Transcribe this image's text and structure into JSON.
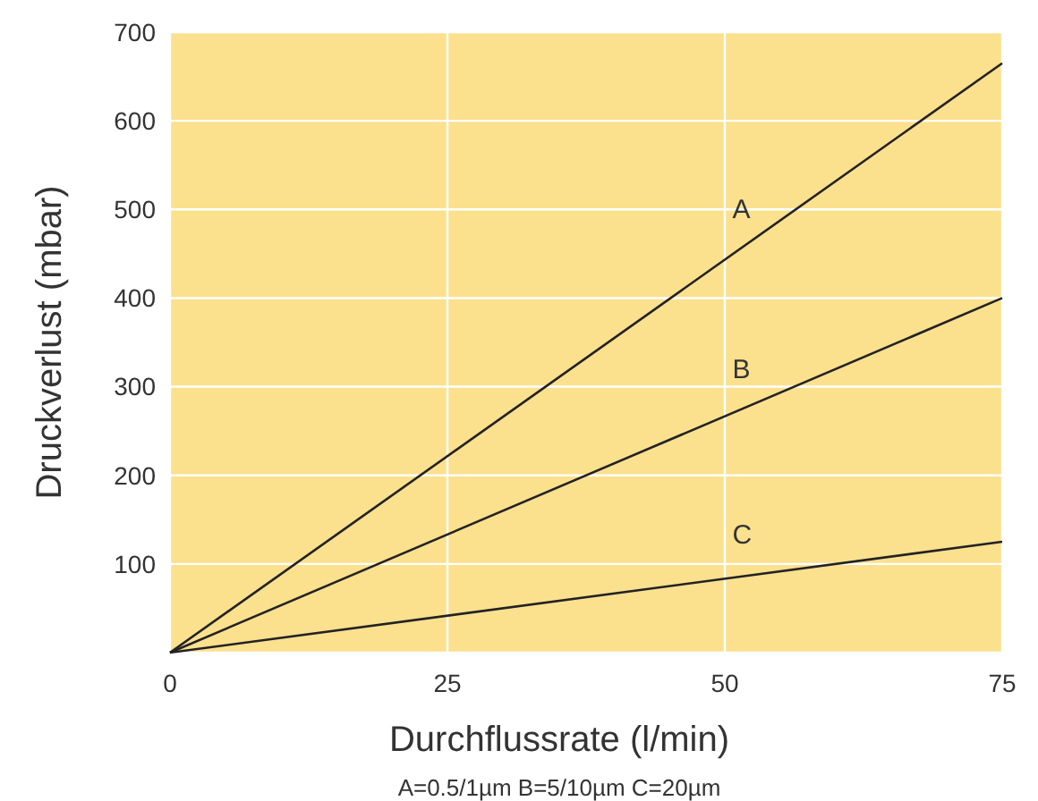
{
  "chart_data": {
    "type": "line",
    "xlabel": "Durchflussrate (l/min)",
    "ylabel": "Druckverlust  (mbar)",
    "x": [
      0,
      75
    ],
    "series": [
      {
        "name": "A",
        "color": "#222222",
        "values": [
          0,
          665
        ]
      },
      {
        "name": "B",
        "color": "#222222",
        "values": [
          0,
          400
        ]
      },
      {
        "name": "C",
        "color": "#222222",
        "values": [
          0,
          125
        ]
      }
    ],
    "xlim": [
      0,
      75
    ],
    "xticks": [
      0,
      25,
      50,
      75
    ],
    "ylim": [
      0,
      700
    ],
    "yticks": [
      {
        "value": 0,
        "label": null
      },
      100,
      200,
      300,
      400,
      500,
      600,
      700
    ],
    "grid": true,
    "annotations": [
      "A=0.5/1µm B=5/10µm C=20µm"
    ]
  }
}
